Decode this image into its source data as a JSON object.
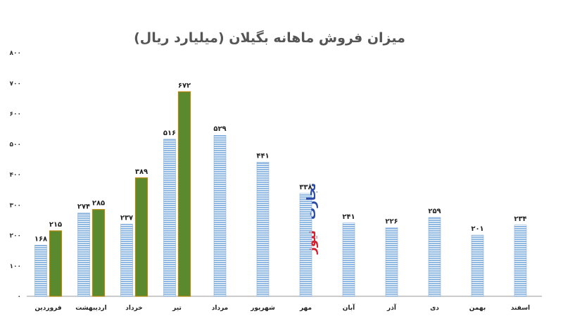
{
  "chart_data": {
    "type": "bar",
    "title": "میزان فروش ماهانه بگیلان (میلیارد ریال)",
    "xlabel": "",
    "ylabel": "",
    "ylim": [
      0,
      800
    ],
    "yticks": [
      "۰",
      "۱۰۰",
      "۲۰۰",
      "۳۰۰",
      "۴۰۰",
      "۵۰۰",
      "۶۰۰",
      "۷۰۰",
      "۸۰۰"
    ],
    "grid": false,
    "legend": "none",
    "categories": [
      "فروردین",
      "اردیبهشت",
      "خرداد",
      "تیر",
      "مرداد",
      "شهریور",
      "مهر",
      "آبان",
      "آذر",
      "دی",
      "بهمن",
      "اسفند"
    ],
    "series": [
      {
        "values": [
          168,
          274,
          237,
          516,
          529,
          441,
          338,
          241,
          226,
          259,
          201,
          234
        ],
        "labels": [
          "۱۶۸",
          "۲۷۴",
          "۲۳۷",
          "۵۱۶",
          "۵۲۹",
          "۴۴۱",
          "۳۳۸",
          "۲۴۱",
          "۲۲۶",
          "۲۵۹",
          "۲۰۱",
          "۲۳۴"
        ],
        "color": "#8fb8e3"
      },
      {
        "values": [
          215,
          285,
          389,
          672,
          null,
          null,
          null,
          null,
          null,
          null,
          null,
          null
        ],
        "labels": [
          "۲۱۵",
          "۲۸۵",
          "۳۸۹",
          "۶۷۲",
          "",
          "",
          "",
          "",
          "",
          "",
          "",
          ""
        ],
        "color": "#5b8a2e"
      }
    ]
  },
  "watermark": {
    "line1": "تجارت",
    "line2": "نیوز",
    "color1": "#2b4aa8",
    "color2": "#d4202f"
  },
  "colors": {
    "title": "#555555",
    "axis": "#999999",
    "blue_bar": "#8fb8e3",
    "blue_stripe": "#ffffff",
    "green_bar": "#5b8a2e",
    "green_border": "#b8860b"
  }
}
